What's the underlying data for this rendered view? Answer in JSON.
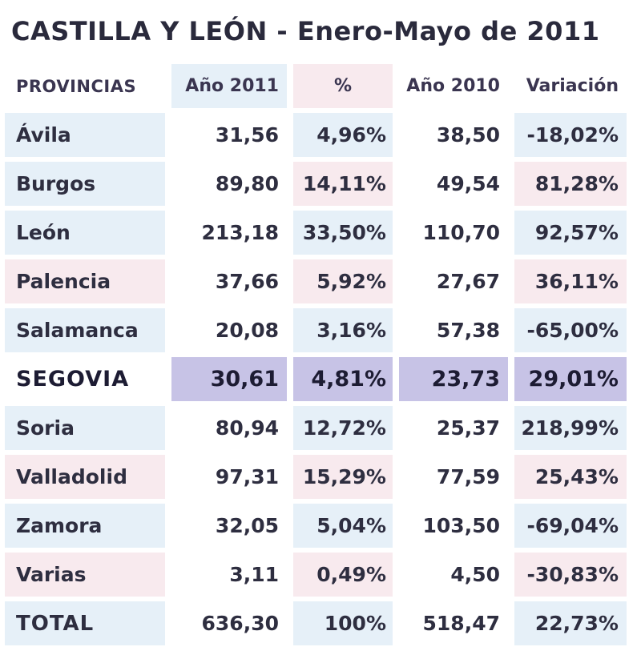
{
  "title": "CASTILLA Y LEÓN - Enero-Mayo de 2011",
  "table": {
    "headers": [
      "PROVINCIAS",
      "Año 2011",
      "%",
      "Año 2010",
      "Variación"
    ],
    "rows": [
      [
        "Ávila",
        "31,56",
        "4,96%",
        "38,50",
        "-18,02%"
      ],
      [
        "Burgos",
        "89,80",
        "14,11%",
        "49,54",
        "81,28%"
      ],
      [
        "León",
        "213,18",
        "33,50%",
        "110,70",
        "92,57%"
      ],
      [
        "Palencia",
        "37,66",
        "5,92%",
        "27,67",
        "36,11%"
      ],
      [
        "Salamanca",
        "20,08",
        "3,16%",
        "57,38",
        "-65,00%"
      ],
      [
        "SEGOVIA",
        "30,61",
        "4,81%",
        "23,73",
        "29,01%"
      ],
      [
        "Soria",
        "80,94",
        "12,72%",
        "25,37",
        "218,99%"
      ],
      [
        "Valladolid",
        "97,31",
        "15,29%",
        "77,59",
        "25,43%"
      ],
      [
        "Zamora",
        "32,05",
        "5,04%",
        "103,50",
        "-69,04%"
      ],
      [
        "Varias",
        "3,11",
        "0,49%",
        "4,50",
        "-30,83%"
      ],
      [
        "TOTAL",
        "636,30",
        "100%",
        "518,47",
        "22,73%"
      ]
    ]
  },
  "colors": {
    "row_tint_blue": "#e6f0f8",
    "row_tint_pink": "#f8eaee",
    "highlight_segovia": "#c7c3e6"
  }
}
